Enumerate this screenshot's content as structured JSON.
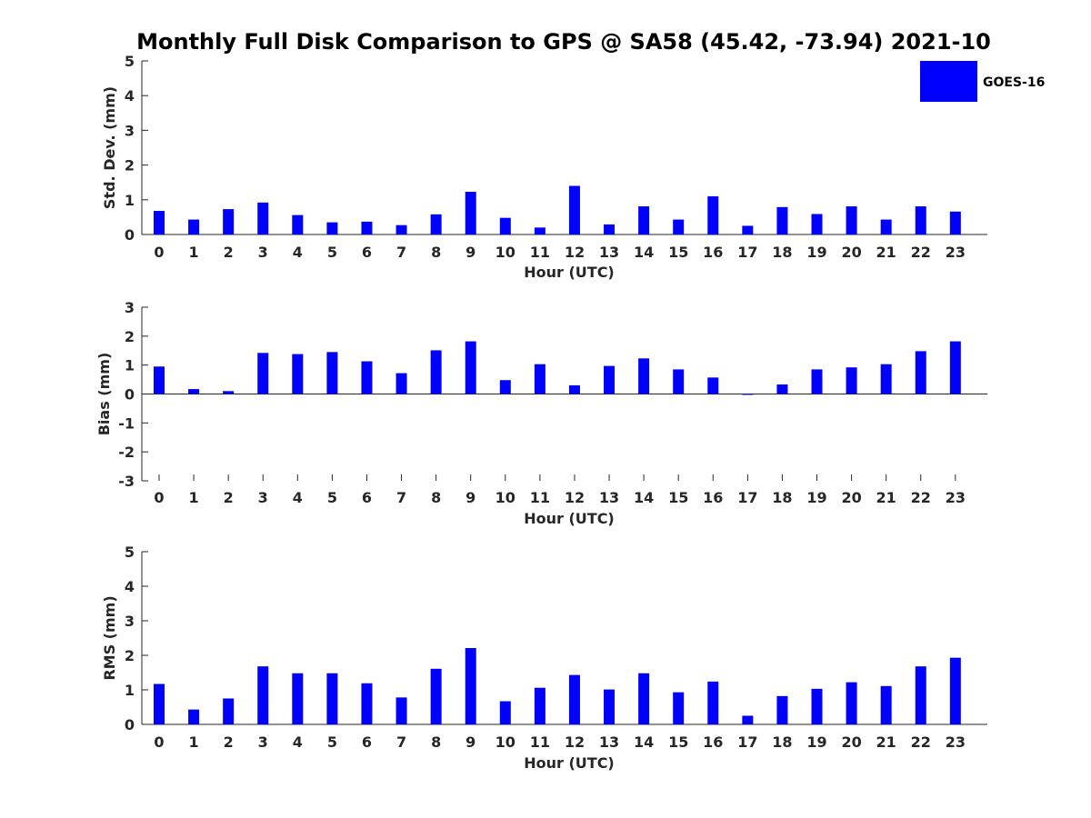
{
  "figure_title": "Monthly Full Disk Comparison to GPS @ SA58 (45.42, -73.94) 2021-10",
  "legend": {
    "label": "GOES-16",
    "color": "#0000ff"
  },
  "chart_data": [
    {
      "type": "bar",
      "title": "Monthly Full Disk Comparison to GPS @ SA58 (45.42, -73.94) 2021-10",
      "xlabel": "Hour (UTC)",
      "ylabel": "Std. Dev. (mm)",
      "ylim": [
        0,
        5
      ],
      "yticks": [
        "0",
        "1",
        "2",
        "3",
        "4",
        "5"
      ],
      "categories": [
        "0",
        "1",
        "2",
        "3",
        "4",
        "5",
        "6",
        "7",
        "8",
        "9",
        "10",
        "11",
        "12",
        "13",
        "14",
        "15",
        "16",
        "17",
        "18",
        "19",
        "20",
        "21",
        "22",
        "23"
      ],
      "series": [
        {
          "name": "GOES-16",
          "color": "#0000ff",
          "values": [
            0.68,
            0.43,
            0.73,
            0.92,
            0.56,
            0.35,
            0.37,
            0.27,
            0.58,
            1.23,
            0.48,
            0.2,
            1.4,
            0.29,
            0.81,
            0.43,
            1.1,
            0.25,
            0.79,
            0.59,
            0.81,
            0.43,
            0.81,
            0.66
          ]
        }
      ],
      "grid": false,
      "legend_position": "top-right"
    },
    {
      "type": "bar",
      "title": "",
      "xlabel": "Hour (UTC)",
      "ylabel": "Bias (mm)",
      "ylim": [
        -3,
        3
      ],
      "yticks": [
        "-3",
        "-2",
        "-1",
        "0",
        "1",
        "2",
        "3"
      ],
      "categories": [
        "0",
        "1",
        "2",
        "3",
        "4",
        "5",
        "6",
        "7",
        "8",
        "9",
        "10",
        "11",
        "12",
        "13",
        "14",
        "15",
        "16",
        "17",
        "18",
        "19",
        "20",
        "21",
        "22",
        "23"
      ],
      "series": [
        {
          "name": "GOES-16",
          "color": "#0000ff",
          "values": [
            0.95,
            0.17,
            0.1,
            1.42,
            1.38,
            1.45,
            1.13,
            0.72,
            1.51,
            1.82,
            0.48,
            1.03,
            0.3,
            0.97,
            1.23,
            0.85,
            0.57,
            -0.03,
            0.33,
            0.85,
            0.92,
            1.03,
            1.48,
            1.82
          ]
        }
      ],
      "grid": false
    },
    {
      "type": "bar",
      "title": "",
      "xlabel": "Hour (UTC)",
      "ylabel": "RMS (mm)",
      "ylim": [
        0,
        5
      ],
      "yticks": [
        "0",
        "1",
        "2",
        "3",
        "4",
        "5"
      ],
      "categories": [
        "0",
        "1",
        "2",
        "3",
        "4",
        "5",
        "6",
        "7",
        "8",
        "9",
        "10",
        "11",
        "12",
        "13",
        "14",
        "15",
        "16",
        "17",
        "18",
        "19",
        "20",
        "21",
        "22",
        "23"
      ],
      "series": [
        {
          "name": "GOES-16",
          "color": "#0000ff",
          "values": [
            1.17,
            0.43,
            0.75,
            1.68,
            1.48,
            1.48,
            1.19,
            0.78,
            1.61,
            2.21,
            0.67,
            1.06,
            1.43,
            1.01,
            1.48,
            0.93,
            1.24,
            0.25,
            0.82,
            1.03,
            1.22,
            1.11,
            1.68,
            1.93
          ]
        }
      ],
      "grid": false
    }
  ]
}
